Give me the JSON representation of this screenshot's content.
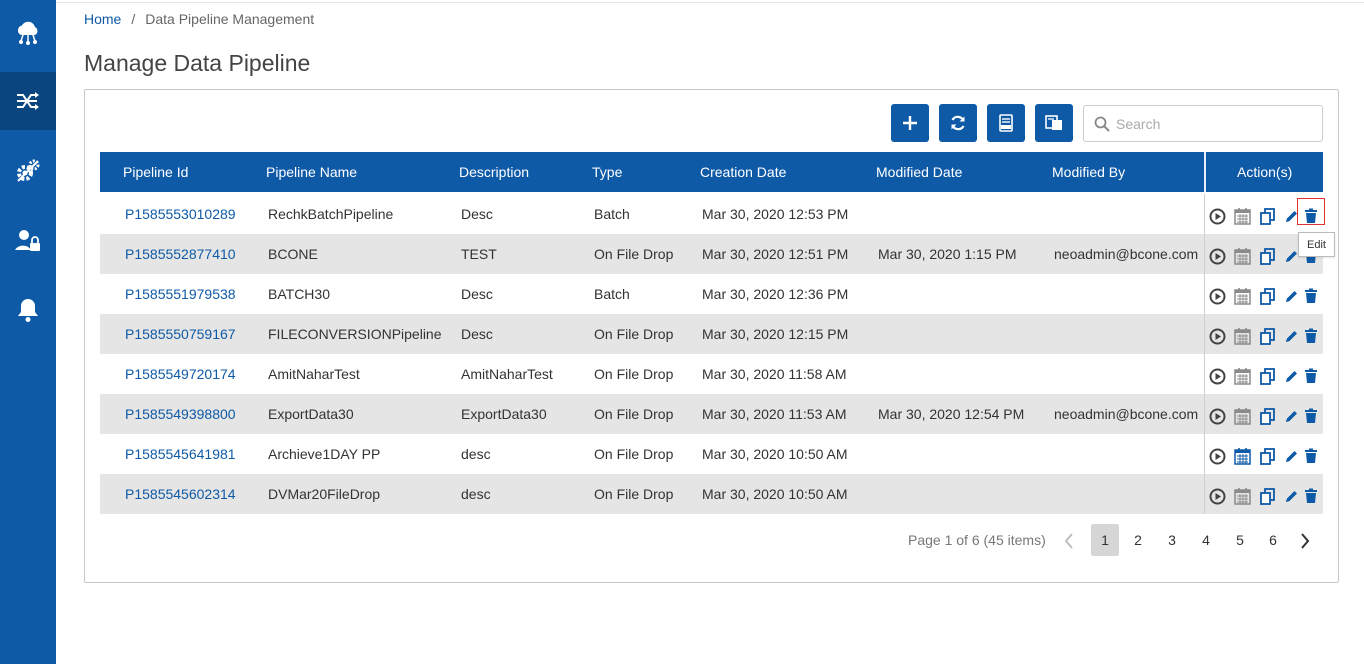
{
  "sidebar": {
    "items": [
      {
        "icon": "cloud-network-icon"
      },
      {
        "icon": "pipeline-shuffle-icon",
        "active": true
      },
      {
        "icon": "gears-icon"
      },
      {
        "icon": "user-lock-icon"
      },
      {
        "icon": "bell-icon"
      }
    ]
  },
  "breadcrumb": {
    "home": "Home",
    "separator": "/",
    "current": "Data Pipeline Management"
  },
  "page_title": "Manage Data Pipeline",
  "toolbar": {
    "buttons": [
      {
        "icon": "plus-icon"
      },
      {
        "icon": "refresh-icon"
      },
      {
        "icon": "xlsx-export-icon"
      },
      {
        "icon": "copy-export-icon"
      }
    ],
    "search_placeholder": "Search"
  },
  "table": {
    "columns": [
      "Pipeline Id",
      "Pipeline Name",
      "Description",
      "Type",
      "Creation Date",
      "Modified Date",
      "Modified By",
      "Action(s)"
    ],
    "rows": [
      {
        "id": "P1585553010289",
        "name": "RechkBatchPipeline",
        "desc": "Desc",
        "type": "Batch",
        "created": "Mar 30, 2020 12:53 PM",
        "modified": "",
        "modified_by": ""
      },
      {
        "id": "P1585552877410",
        "name": "BCONE",
        "desc": "TEST",
        "type": "On File Drop",
        "created": "Mar 30, 2020 12:51 PM",
        "modified": "Mar 30, 2020 1:15 PM",
        "modified_by": "neoadmin@bcone.com"
      },
      {
        "id": "P1585551979538",
        "name": "BATCH30",
        "desc": "Desc",
        "type": "Batch",
        "created": "Mar 30, 2020 12:36 PM",
        "modified": "",
        "modified_by": ""
      },
      {
        "id": "P1585550759167",
        "name": "FILECONVERSIONPipeline",
        "desc": "Desc",
        "type": "On File Drop",
        "created": "Mar 30, 2020 12:15 PM",
        "modified": "",
        "modified_by": ""
      },
      {
        "id": "P1585549720174",
        "name": "AmitNaharTest",
        "desc": "AmitNaharTest",
        "type": "On File Drop",
        "created": "Mar 30, 2020 11:58 AM",
        "modified": "",
        "modified_by": ""
      },
      {
        "id": "P1585549398800",
        "name": "ExportData30",
        "desc": "ExportData30",
        "type": "On File Drop",
        "created": "Mar 30, 2020 11:53 AM",
        "modified": "Mar 30, 2020 12:54 PM",
        "modified_by": "neoadmin@bcone.com"
      },
      {
        "id": "P1585545641981",
        "name": "Archieve1DAY PP",
        "desc": "desc",
        "type": "On File Drop",
        "created": "Mar 30, 2020 10:50 AM",
        "modified": "",
        "modified_by": ""
      },
      {
        "id": "P1585545602314",
        "name": "DVMar20FileDrop",
        "desc": "desc",
        "type": "On File Drop",
        "created": "Mar 30, 2020 10:50 AM",
        "modified": "",
        "modified_by": ""
      }
    ],
    "actions": [
      "play-icon",
      "calendar-icon",
      "copy-icon",
      "edit-icon",
      "delete-icon"
    ]
  },
  "tooltip": "Edit",
  "pager": {
    "info": "Page 1 of 6 (45 items)",
    "pages": [
      "1",
      "2",
      "3",
      "4",
      "5",
      "6"
    ],
    "current": "1"
  },
  "colors": {
    "primary": "#0e5aa7",
    "row_alt": "#e5e5e5",
    "icon_gray": "#8a8a8a"
  }
}
